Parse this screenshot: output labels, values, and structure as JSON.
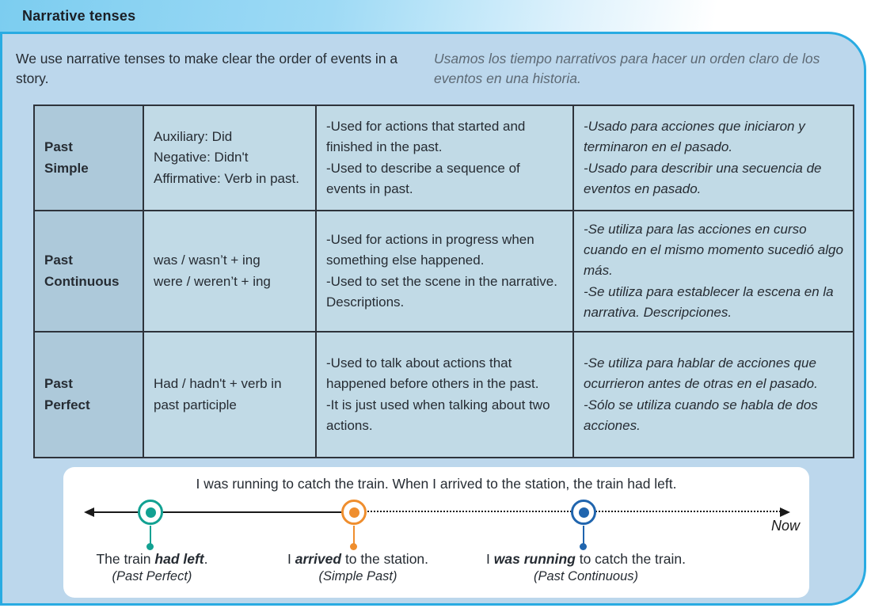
{
  "header": {
    "title": "Narrative tenses"
  },
  "intro": {
    "en": "We use narrative tenses to make clear the order of events in a story.",
    "es": "Usamos los tiempo narrativos para hacer un orden claro de los eventos en una historia."
  },
  "table": {
    "rows": [
      {
        "tense": "Past\nSimple",
        "form": "Auxiliary: Did\nNegative: Didn't\nAffirmative: Verb in past.",
        "use_en": "-Used for actions that started and finished in the past.\n-Used to describe a sequence of events in past.",
        "use_es": "-Usado para acciones que iniciaron y terminaron en el pasado.\n-Usado para describir una secuencia de eventos en pasado."
      },
      {
        "tense": "Past\nContinuous",
        "form": "was / wasn’t + ing\nwere / weren’t + ing",
        "use_en": "-Used for actions in progress when something else happened.\n-Used to set the scene in the narrative. Descriptions.",
        "use_es": "-Se utiliza para las acciones en curso cuando en el mismo momento sucedió algo más.\n-Se utiliza para establecer la escena en la narrativa. Descripciones."
      },
      {
        "tense": "Past\nPerfect",
        "form": "Had / hadn't + verb in past participle",
        "use_en": "-Used to talk about actions that happened before others in the past.\n-It is just used when talking about two actions.",
        "use_es": "-Se utiliza para hablar de acciones que ocurrieron antes de otras en el pasado.\n-Sólo se utiliza cuando se habla de dos acciones."
      }
    ]
  },
  "timeline": {
    "sentence": "I was running to catch the train. When I arrived to the station, the train had left.",
    "now_label": "Now",
    "events": [
      {
        "pre": "The train ",
        "verb": "had left",
        "post": ".",
        "tense": "(Past Perfect)",
        "color": "#12a192"
      },
      {
        "pre": "I ",
        "verb": "arrived",
        "post": " to the station.",
        "tense": "(Simple Past)",
        "color": "#ef8e2e"
      },
      {
        "pre": "I ",
        "verb": "was running",
        "post": " to catch the train.",
        "tense": "(Past Continuous)",
        "color": "#2065ae"
      }
    ]
  },
  "colors": {
    "accent_border": "#29abe2",
    "panel_fill": "#bcd7ec",
    "past_perfect_teal": "#12a192",
    "simple_past_orange": "#ef8e2e",
    "past_continuous_blue": "#2065ae"
  }
}
